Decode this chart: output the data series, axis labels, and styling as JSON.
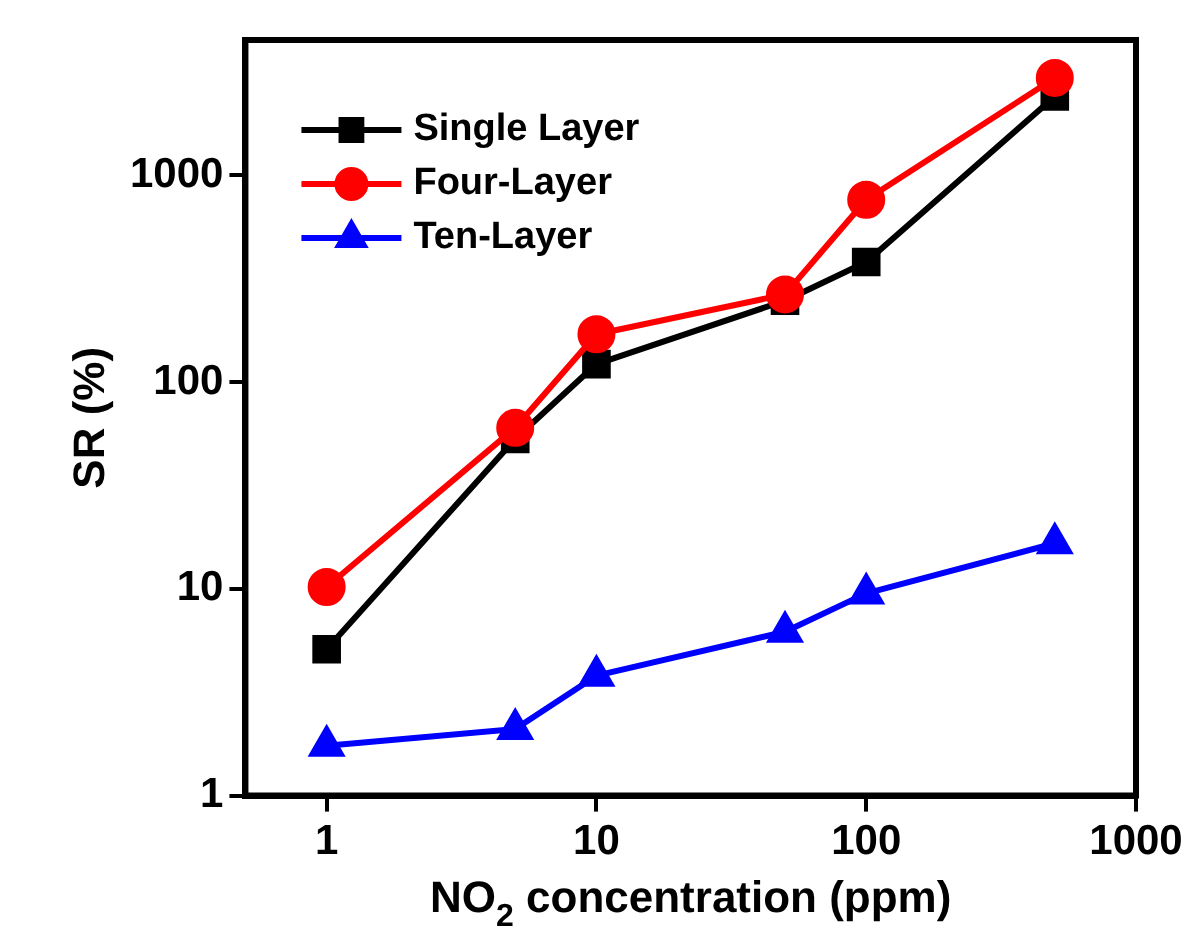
{
  "chart_data": {
    "type": "line",
    "xlabel": "NO$_{2}$ concentration (ppm)",
    "ylabel": "SR (%)",
    "x": [
      1,
      5,
      10,
      50,
      100,
      500
    ],
    "log": "xy",
    "xlim": [
      0.5,
      1000
    ],
    "xticks": [
      1,
      10,
      100,
      1000
    ],
    "ylim": [
      1,
      4500
    ],
    "yticks": [
      1,
      10,
      100,
      1000
    ],
    "grid": false,
    "legend": "top left",
    "line_style": "solid",
    "series": [
      {
        "name": "Single Layer",
        "color": "#000000",
        "marker": "square",
        "values": [
          5.1,
          53,
          122,
          247,
          380,
          2400
        ]
      },
      {
        "name": "Four-Layer",
        "color": "#ff0000",
        "marker": "circle",
        "values": [
          10.2,
          60,
          170,
          265,
          760,
          2950
        ]
      },
      {
        "name": "Ten-Layer",
        "color": "#0000ff",
        "marker": "triangle",
        "values": [
          1.74,
          2.1,
          3.8,
          6.2,
          9.5,
          16.6
        ]
      }
    ]
  }
}
